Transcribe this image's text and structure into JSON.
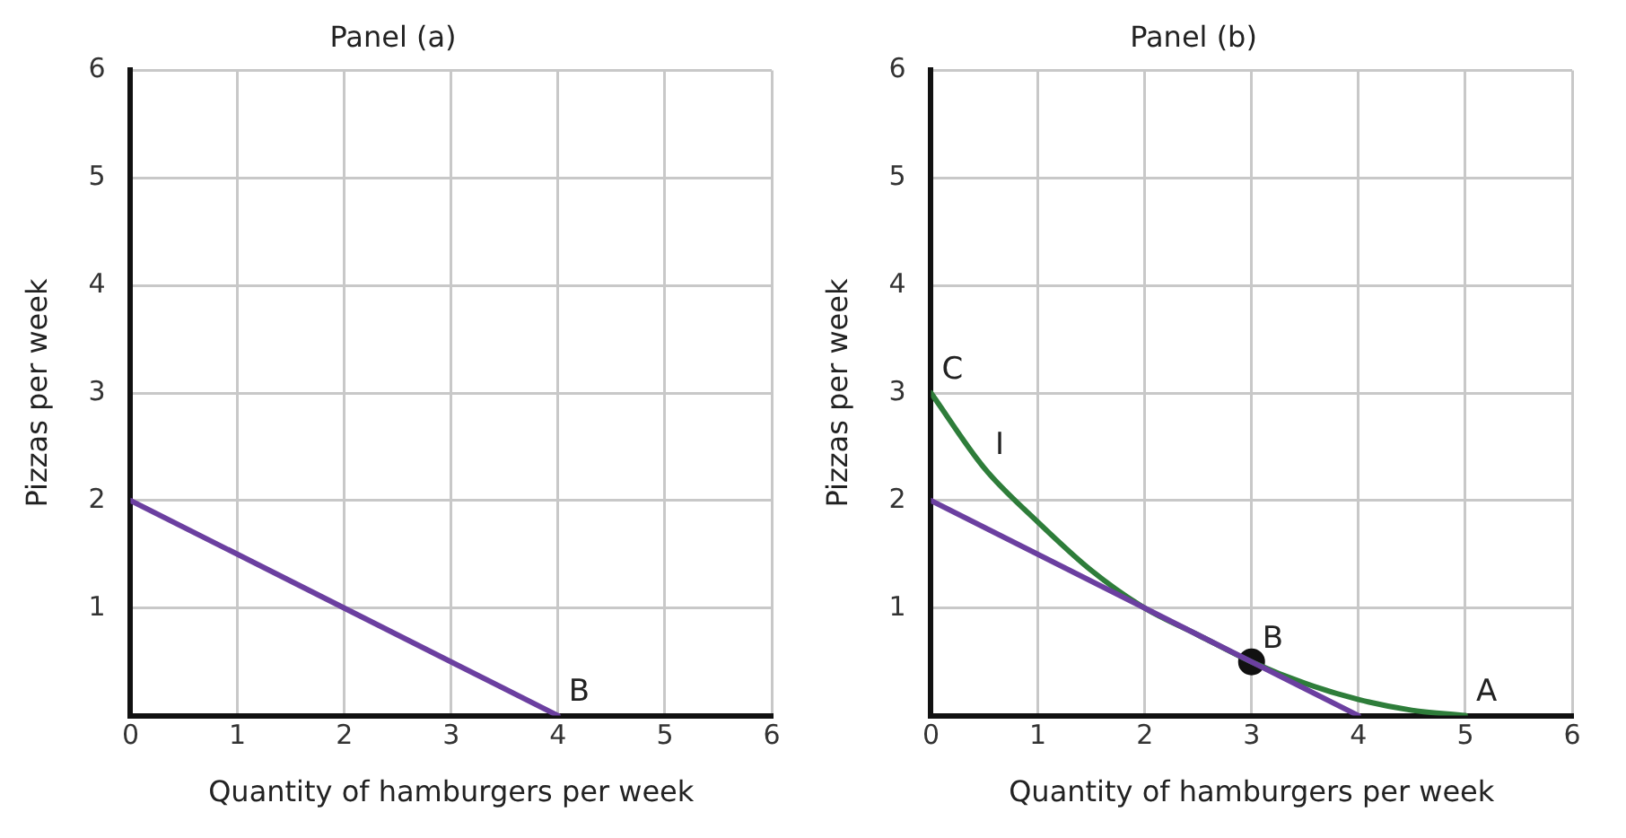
{
  "chart_data": [
    {
      "type": "line",
      "title": "Panel (a)",
      "xlabel": "Quantity of hamburgers per week",
      "ylabel": "Pizzas per week",
      "xlim": [
        0,
        6
      ],
      "ylim": [
        0,
        6
      ],
      "xticks": [
        0,
        1,
        2,
        3,
        4,
        5,
        6
      ],
      "yticks": [
        {
          "value": 0,
          "label": null
        },
        1,
        2,
        3,
        4,
        5,
        6
      ],
      "grid": true,
      "series": [
        {
          "color": "#6b3fa0",
          "x": [
            0,
            4
          ],
          "values": [
            2,
            0
          ],
          "marker": "none"
        }
      ],
      "annotations": [
        {
          "text": "B",
          "x": 4,
          "y": 0
        }
      ]
    },
    {
      "type": "line",
      "title": "Panel (b)",
      "xlabel": "Quantity of hamburgers per week",
      "ylabel": "Pizzas per week",
      "xlim": [
        0,
        6
      ],
      "ylim": [
        0,
        6
      ],
      "xticks": [
        0,
        1,
        2,
        3,
        4,
        5,
        6
      ],
      "yticks": [
        {
          "value": 0,
          "label": null
        },
        1,
        2,
        3,
        4,
        5,
        6
      ],
      "grid": true,
      "series": [
        {
          "color": "#6b3fa0",
          "x": [
            0,
            4
          ],
          "values": [
            2,
            0
          ],
          "marker": "none"
        },
        {
          "color": "#2e7d3a",
          "x": [
            0,
            0.5,
            1,
            1.5,
            2,
            2.5,
            3,
            3.5,
            4,
            4.5,
            5
          ],
          "values": [
            3,
            2.3,
            1.8,
            1.35,
            1,
            0.75,
            0.5,
            0.3,
            0.15,
            0.05,
            0
          ],
          "marker": "none"
        },
        {
          "type": "scatter",
          "color": "#111111",
          "x": [
            3
          ],
          "values": [
            0.5
          ],
          "marker": "circle"
        }
      ],
      "annotations": [
        {
          "text": "C",
          "x": 0,
          "y": 3
        },
        {
          "text": "I",
          "x": 0.5,
          "y": 2.3
        },
        {
          "text": "B",
          "x": 3,
          "y": 0.5
        },
        {
          "text": "A",
          "x": 5,
          "y": 0
        }
      ]
    }
  ]
}
